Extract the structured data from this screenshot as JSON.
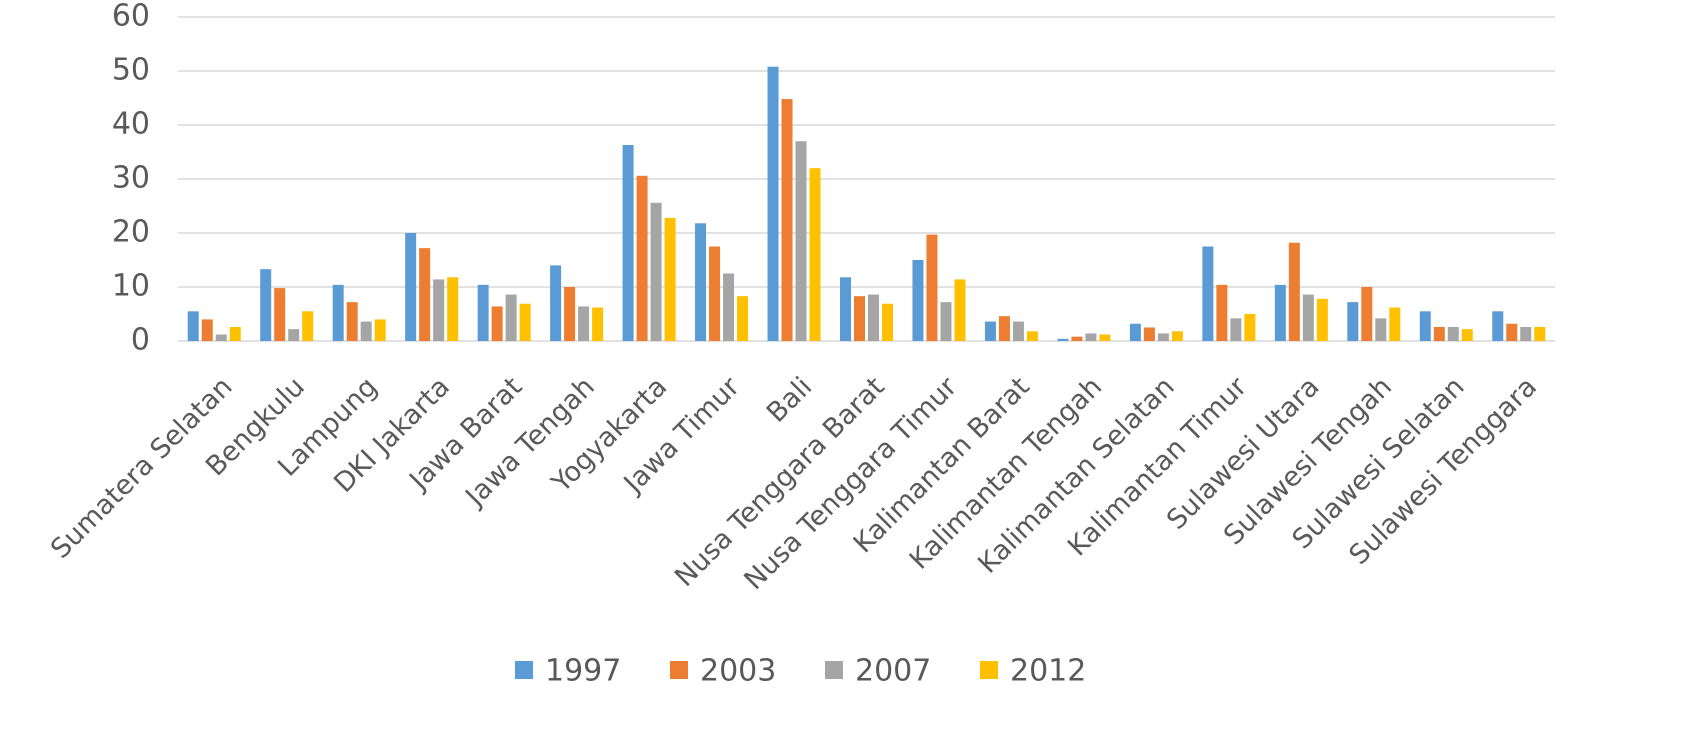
{
  "chart_data": {
    "type": "bar",
    "categories": [
      "Sumatera Selatan",
      "Bengkulu",
      "Lampung",
      "DKI Jakarta",
      "Jawa Barat",
      "Jawa Tengah",
      "Yogyakarta",
      "Jawa Timur",
      "Bali",
      "Nusa Tenggara Barat",
      "Nusa Tenggara Timur",
      "Kalimantan Barat",
      "Kalimantan Tengah",
      "Kalimantan Selatan",
      "Kalimantan Timur",
      "Sulawesi Utara",
      "Sulawesi Tengah",
      "Sulawesi Selatan",
      "Sulawesi Tenggara"
    ],
    "series": [
      {
        "name": "1997",
        "color": "#5b9bd5",
        "values": [
          5.5,
          13.3,
          10.4,
          20,
          10.4,
          14,
          36.3,
          21.8,
          50.8,
          11.8,
          15,
          3.6,
          0.4,
          3.2,
          17.5,
          10.4,
          7.2,
          5.5,
          5.5
        ]
      },
      {
        "name": "2003",
        "color": "#ed7d31",
        "values": [
          4,
          9.8,
          7.2,
          17.2,
          6.4,
          10,
          30.6,
          17.5,
          44.8,
          8.3,
          19.7,
          4.6,
          0.8,
          2.5,
          10.4,
          18.2,
          10,
          2.6,
          3.2
        ]
      },
      {
        "name": "2007",
        "color": "#a5a5a5",
        "values": [
          1.2,
          2.2,
          3.6,
          11.4,
          8.6,
          6.4,
          25.6,
          12.5,
          37,
          8.6,
          7.2,
          3.6,
          1.4,
          1.4,
          4.2,
          8.6,
          4.2,
          2.6,
          2.6
        ]
      },
      {
        "name": "2012",
        "color": "#ffc000",
        "values": [
          2.6,
          5.5,
          4,
          11.8,
          6.9,
          6.2,
          22.8,
          8.3,
          32,
          6.9,
          11.4,
          1.8,
          1.2,
          1.8,
          5,
          7.8,
          6.2,
          2.2,
          2.6
        ]
      }
    ],
    "ylim": [
      0,
      60
    ],
    "yticks": [
      0,
      10,
      20,
      30,
      40,
      50,
      60
    ],
    "grid": true,
    "legend": "bottom"
  }
}
